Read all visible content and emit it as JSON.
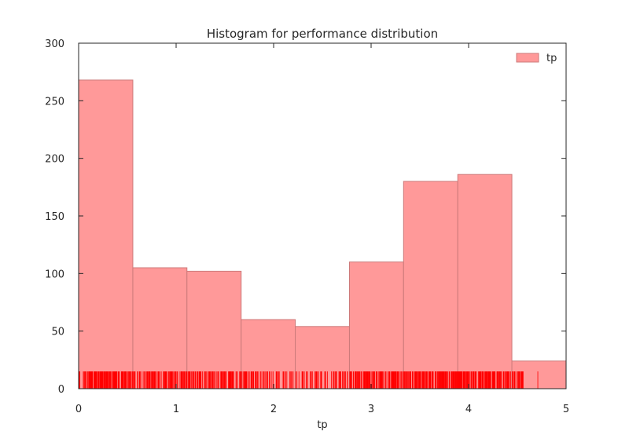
{
  "chart_data": {
    "type": "bar",
    "title": "Histogram for performance distribution",
    "xlabel": "tp",
    "ylabel": "",
    "xlim": [
      0,
      5
    ],
    "ylim": [
      0,
      300
    ],
    "x_ticks": [
      0,
      1,
      2,
      3,
      4,
      5
    ],
    "y_ticks": [
      0,
      50,
      100,
      150,
      200,
      250,
      300
    ],
    "bins": [
      {
        "start": 0.0,
        "end": 0.556,
        "count": 268
      },
      {
        "start": 0.556,
        "end": 1.111,
        "count": 105
      },
      {
        "start": 1.111,
        "end": 1.667,
        "count": 102
      },
      {
        "start": 1.667,
        "end": 2.222,
        "count": 60
      },
      {
        "start": 2.222,
        "end": 2.778,
        "count": 54
      },
      {
        "start": 2.778,
        "end": 3.333,
        "count": 110
      },
      {
        "start": 3.333,
        "end": 3.889,
        "count": 180
      },
      {
        "start": 3.889,
        "end": 4.444,
        "count": 186
      },
      {
        "start": 4.444,
        "end": 5.0,
        "count": 24
      }
    ],
    "series": [
      {
        "name": "tp",
        "color": "#ff9999",
        "edge_color": "#cc7a7a"
      }
    ],
    "rug": {
      "color": "#ff0000",
      "height_value": 15
    },
    "legend": {
      "position": "top-right"
    },
    "grid": false
  }
}
